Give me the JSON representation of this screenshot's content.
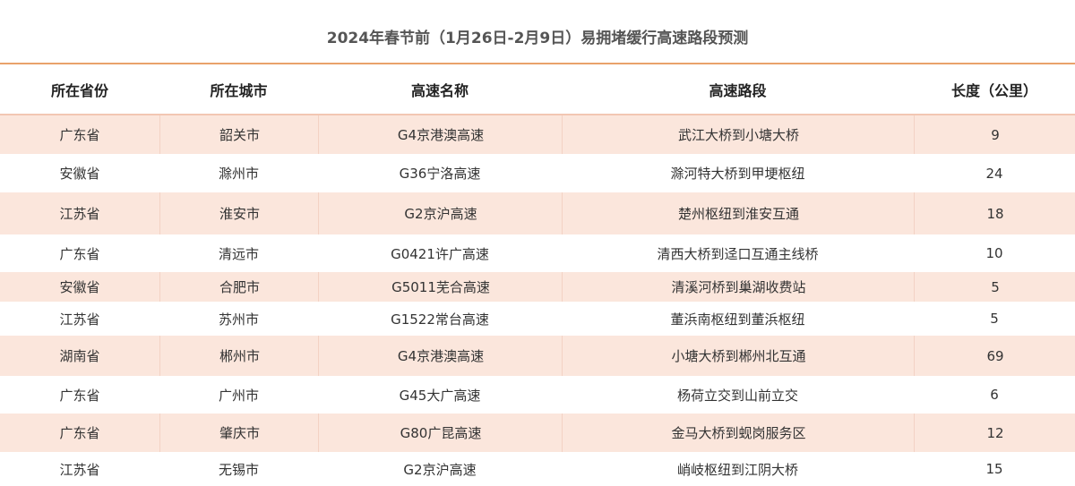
{
  "title": "2024年春节前（1月26日-2月9日）易拥堵缓行高速路段预测",
  "table": {
    "header": [
      "所在省份",
      "所在城市",
      "高速名称",
      "高速路段",
      "长度（公里）"
    ],
    "rows": [
      [
        "广东省",
        "韶关市",
        "G4京港澳高速",
        "武江大桥到小塘大桥",
        9
      ],
      [
        "安徽省",
        "滁州市",
        "G36宁洛高速",
        "滁河特大桥到甲埂枢纽",
        24
      ],
      [
        "江苏省",
        "淮安市",
        "G2京沪高速",
        "楚州枢纽到淮安互通",
        18
      ],
      [
        "广东省",
        "清远市",
        "G0421许广高速",
        "清西大桥到迳口互通主线桥",
        10
      ],
      [
        "安徽省",
        "合肥市",
        "G5011芜合高速",
        "清溪河桥到巢湖收费站",
        5
      ],
      [
        "江苏省",
        "苏州市",
        "G1522常台高速",
        "董浜南枢纽到董浜枢纽",
        5
      ],
      [
        "湖南省",
        "郴州市",
        "G4京港澳高速",
        "小塘大桥到郴州北互通",
        69
      ],
      [
        "广东省",
        "广州市",
        "G45大广高速",
        "杨荷立交到山前立交",
        6
      ],
      [
        "广东省",
        "肇庆市",
        "G80广昆高速",
        "金马大桥到蚬岗服务区",
        12
      ],
      [
        "江苏省",
        "无锡市",
        "G2京沪高速",
        "峭岐枢纽到江阴大桥",
        15
      ]
    ]
  }
}
